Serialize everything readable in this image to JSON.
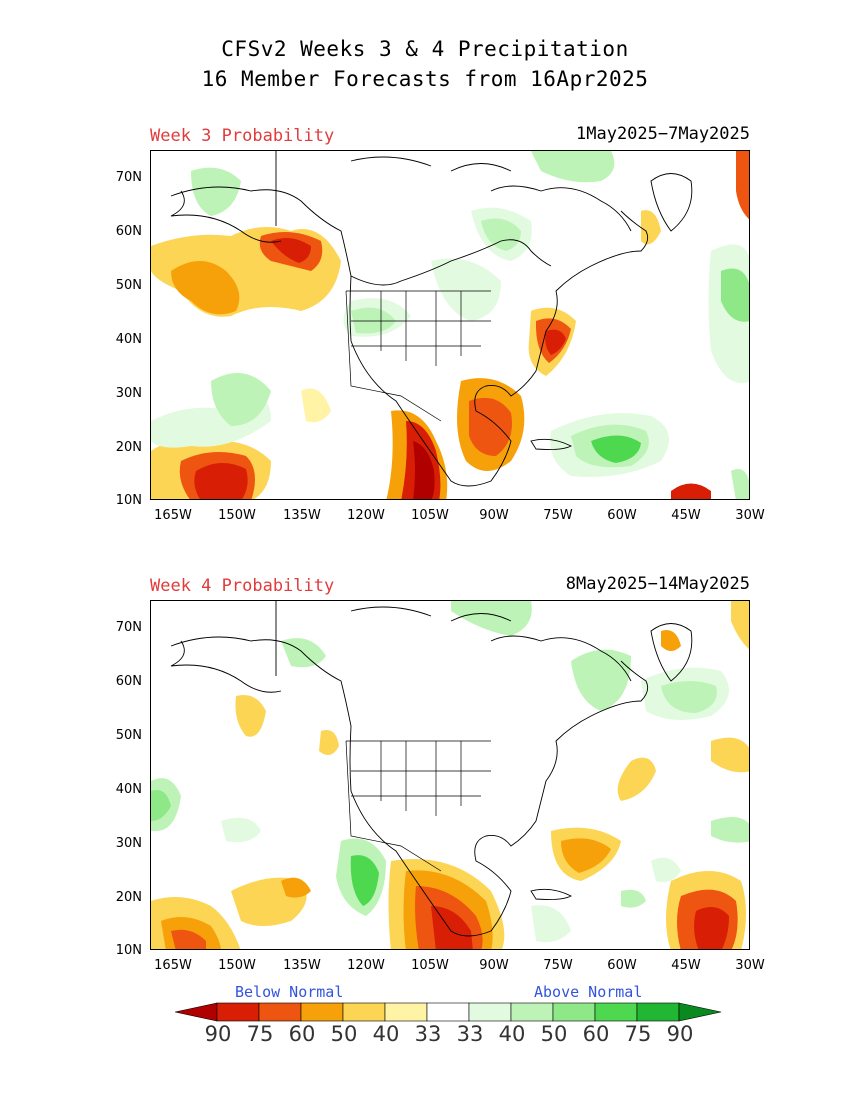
{
  "title_line1": "CFSv2 Weeks 3 & 4 Precipitation",
  "title_line2": "16 Member Forecasts from 16Apr2025",
  "panels": [
    {
      "label": "Week 3 Probability",
      "dates": "1May2025−7May2025"
    },
    {
      "label": "Week 4 Probability",
      "dates": "8May2025−14May2025"
    }
  ],
  "lat_ticks": [
    "70N",
    "60N",
    "50N",
    "40N",
    "30N",
    "20N",
    "10N"
  ],
  "lon_ticks": [
    "165W",
    "150W",
    "135W",
    "120W",
    "105W",
    "90W",
    "75W",
    "60W",
    "45W",
    "30W"
  ],
  "legend": {
    "below": "Below Normal",
    "above": "Above Normal",
    "values": [
      "90",
      "75",
      "60",
      "50",
      "40",
      "33",
      "33",
      "40",
      "50",
      "60",
      "75",
      "90"
    ],
    "colors": [
      "#b00000",
      "#d81e05",
      "#ee5511",
      "#f7a10a",
      "#fcd555",
      "#fff3a5",
      "#ffffff",
      "#e2fbe0",
      "#bdf3b6",
      "#8ee888",
      "#4ed850",
      "#22b732",
      "#0a8a1e"
    ]
  }
}
